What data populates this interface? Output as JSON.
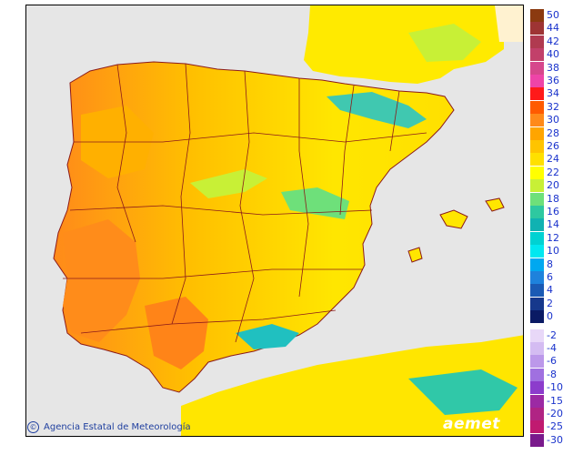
{
  "credit": {
    "symbol": "©",
    "text": "Agencia Estatal de Meteorología"
  },
  "logo": {
    "text": "aemet"
  },
  "legend": {
    "items": [
      {
        "label": "50",
        "color": "#8b3a10"
      },
      {
        "label": "44",
        "color": "#9e3434"
      },
      {
        "label": "42",
        "color": "#b03a50"
      },
      {
        "label": "40",
        "color": "#c2406a"
      },
      {
        "label": "38",
        "color": "#d6478c"
      },
      {
        "label": "36",
        "color": "#ee44a8"
      },
      {
        "label": "34",
        "color": "#ff1a1a"
      },
      {
        "label": "32",
        "color": "#ff5a00"
      },
      {
        "label": "30",
        "color": "#ff8a1a"
      },
      {
        "label": "28",
        "color": "#ffa500"
      },
      {
        "label": "26",
        "color": "#ffc400"
      },
      {
        "label": "24",
        "color": "#ffe000"
      },
      {
        "label": "22",
        "color": "#ffff00"
      },
      {
        "label": "20",
        "color": "#c8f036"
      },
      {
        "label": "18",
        "color": "#6ee07a"
      },
      {
        "label": "16",
        "color": "#2ec8a0"
      },
      {
        "label": "14",
        "color": "#10b2b2"
      },
      {
        "label": "12",
        "color": "#00d2d2"
      },
      {
        "label": "10",
        "color": "#00e8f0"
      },
      {
        "label": "8",
        "color": "#00a8f0"
      },
      {
        "label": "6",
        "color": "#1e82dc"
      },
      {
        "label": "4",
        "color": "#1a5ab4"
      },
      {
        "label": "2",
        "color": "#16388c"
      },
      {
        "label": "0",
        "color": "#0a1a64"
      },
      {
        "label": "-2",
        "color": "#e8d8f8"
      },
      {
        "label": "-4",
        "color": "#d4bcf2"
      },
      {
        "label": "-6",
        "color": "#bc98ea"
      },
      {
        "label": "-8",
        "color": "#a070e0"
      },
      {
        "label": "-10",
        "color": "#8c3ccc"
      },
      {
        "label": "-15",
        "color": "#9c2aa4"
      },
      {
        "label": "-20",
        "color": "#b02484"
      },
      {
        "label": "-25",
        "color": "#c01a70"
      },
      {
        "label": "-30",
        "color": "#7a1a8c"
      }
    ]
  }
}
